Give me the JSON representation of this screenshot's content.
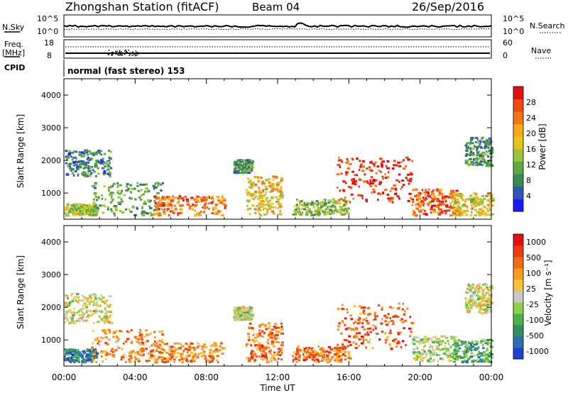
{
  "header": {
    "station": "Zhongshan Station (fitACF)",
    "beam": "Beam 04",
    "date": "26/Sep/2016"
  },
  "top_panels": {
    "nsky_label": "N.Sky",
    "nsearch_label": "N.Search",
    "noise_ticks": [
      "10^5",
      "10^0"
    ],
    "freq_label": "Freq.",
    "freq_unit": "[MHz]",
    "freq_ticks": [
      "18",
      "8"
    ],
    "nave_label": "Nave",
    "nave_ticks": [
      "60",
      "0"
    ],
    "cpid_label": "CPID",
    "cpid_value": "normal (fast stereo) 153"
  },
  "chart_data": [
    {
      "type": "heatmap",
      "parameter": "power",
      "ylabel": "Slant Range [km]",
      "xlabel": "",
      "ylim": [
        200,
        4500
      ],
      "xlim_hours": [
        0,
        24
      ],
      "x_tick_labels": [],
      "y_ticks": [
        1000,
        2000,
        3000,
        4000
      ],
      "colorbar": {
        "label": "Power [dB]",
        "ticks": [
          4,
          8,
          12,
          16,
          20,
          24,
          28
        ],
        "colors": [
          "#1a1aff",
          "#2f55b7",
          "#3a8a57",
          "#5fa845",
          "#9cc43a",
          "#e3c51d",
          "#f9a81a",
          "#f57617",
          "#ee4a12",
          "#e21010"
        ]
      },
      "echo_regions": [
        {
          "t0": 0.0,
          "t1": 1.8,
          "r0": 300,
          "r1": 650,
          "level": 0.45
        },
        {
          "t0": 0.0,
          "t1": 2.6,
          "r0": 1500,
          "r1": 2300,
          "level": 0.25
        },
        {
          "t0": 1.5,
          "t1": 5.5,
          "r0": 300,
          "r1": 1300,
          "level": 0.35
        },
        {
          "t0": 5.0,
          "t1": 9.0,
          "r0": 300,
          "r1": 900,
          "level": 0.75
        },
        {
          "t0": 9.5,
          "t1": 10.5,
          "r0": 1600,
          "r1": 2000,
          "level": 0.3
        },
        {
          "t0": 10.2,
          "t1": 12.2,
          "r0": 300,
          "r1": 1500,
          "level": 0.6
        },
        {
          "t0": 12.8,
          "t1": 16.0,
          "r0": 300,
          "r1": 800,
          "level": 0.4
        },
        {
          "t0": 15.3,
          "t1": 19.5,
          "r0": 700,
          "r1": 2100,
          "level": 0.9
        },
        {
          "t0": 19.5,
          "t1": 22.0,
          "r0": 300,
          "r1": 1100,
          "level": 0.8
        },
        {
          "t0": 21.8,
          "t1": 24.0,
          "r0": 300,
          "r1": 1000,
          "level": 0.55
        },
        {
          "t0": 22.5,
          "t1": 24.0,
          "r0": 1800,
          "r1": 2700,
          "level": 0.3
        }
      ]
    },
    {
      "type": "heatmap",
      "parameter": "velocity",
      "ylabel": "Slant Range [km]",
      "xlabel": "Time UT",
      "ylim": [
        200,
        4500
      ],
      "xlim_hours": [
        0,
        24
      ],
      "x_tick_labels": [
        "00:00",
        "04:00",
        "08:00",
        "12:00",
        "16:00",
        "20:00",
        "00:00"
      ],
      "y_ticks": [
        1000,
        2000,
        3000,
        4000
      ],
      "colorbar": {
        "label": "Velocity [m s⁻¹]",
        "ticks": [
          "1000",
          "500",
          "100",
          "25",
          "-25",
          "-100",
          "-500",
          "-1000"
        ],
        "colors": [
          "#1f3fd6",
          "#2f6fb0",
          "#2f8f5f",
          "#4eb04a",
          "#8fd04a",
          "#c8c8c8",
          "#f7c23a",
          "#f59b1f",
          "#f36a14",
          "#ee3a10",
          "#e21010"
        ]
      },
      "echo_regions": [
        {
          "t0": 0.0,
          "t1": 1.8,
          "r0": 300,
          "r1": 700,
          "level": 0.2
        },
        {
          "t0": 0.0,
          "t1": 2.6,
          "r0": 1500,
          "r1": 2400,
          "level": 0.5
        },
        {
          "t0": 1.5,
          "t1": 5.5,
          "r0": 300,
          "r1": 1300,
          "level": 0.7
        },
        {
          "t0": 5.0,
          "t1": 9.0,
          "r0": 300,
          "r1": 900,
          "level": 0.72
        },
        {
          "t0": 9.5,
          "t1": 10.5,
          "r0": 1600,
          "r1": 2000,
          "level": 0.5
        },
        {
          "t0": 10.2,
          "t1": 12.2,
          "r0": 300,
          "r1": 1500,
          "level": 0.75
        },
        {
          "t0": 12.8,
          "t1": 16.0,
          "r0": 300,
          "r1": 800,
          "level": 0.75
        },
        {
          "t0": 15.3,
          "t1": 19.5,
          "r0": 700,
          "r1": 2100,
          "level": 0.78
        },
        {
          "t0": 19.5,
          "t1": 22.0,
          "r0": 300,
          "r1": 1100,
          "level": 0.45
        },
        {
          "t0": 21.8,
          "t1": 24.0,
          "r0": 300,
          "r1": 1000,
          "level": 0.3
        },
        {
          "t0": 22.5,
          "t1": 24.0,
          "r0": 1800,
          "r1": 2700,
          "level": 0.5
        }
      ]
    }
  ]
}
